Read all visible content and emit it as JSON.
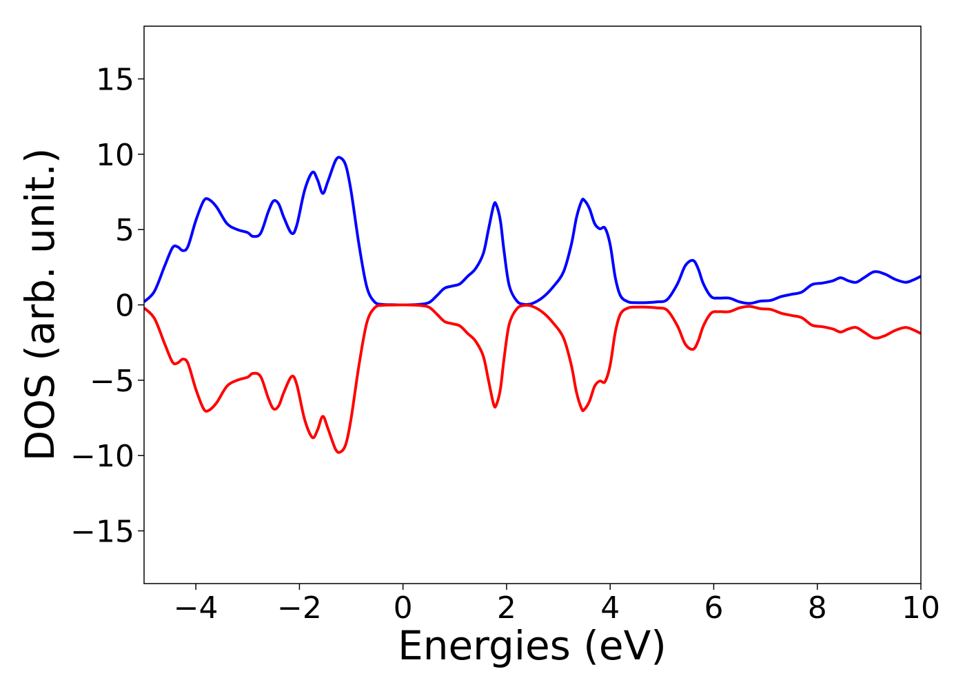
{
  "chart_data": {
    "type": "line",
    "title": "",
    "xlabel": "Energies (eV)",
    "ylabel": "DOS (arb. unit.)",
    "xlim": [
      -5,
      10
    ],
    "ylim": [
      -18.5,
      18.5
    ],
    "xticks": [
      -4,
      -2,
      0,
      2,
      4,
      6,
      8,
      10
    ],
    "xtick_labels": [
      "−4",
      "−2",
      "0",
      "2",
      "4",
      "6",
      "8",
      "10"
    ],
    "yticks": [
      -15,
      -10,
      -5,
      0,
      5,
      10,
      15
    ],
    "ytick_labels": [
      "−15",
      "−10",
      "−5",
      "0",
      "5",
      "10",
      "15"
    ],
    "grid": false,
    "legend": "none",
    "series": [
      {
        "color": "#0000ff",
        "x": [
          -5.0,
          -4.8,
          -4.6,
          -4.45,
          -4.35,
          -4.25,
          -4.15,
          -4.0,
          -3.85,
          -3.75,
          -3.6,
          -3.4,
          -3.2,
          -3.0,
          -2.9,
          -2.75,
          -2.6,
          -2.5,
          -2.4,
          -2.3,
          -2.15,
          -2.05,
          -1.9,
          -1.75,
          -1.65,
          -1.55,
          -1.45,
          -1.3,
          -1.2,
          -1.1,
          -1.0,
          -0.85,
          -0.7,
          -0.55,
          -0.4,
          -0.2,
          0.0,
          0.3,
          0.5,
          0.65,
          0.8,
          0.95,
          1.1,
          1.25,
          1.4,
          1.55,
          1.65,
          1.75,
          1.8,
          1.88,
          1.95,
          2.05,
          2.2,
          2.35,
          2.5,
          2.7,
          2.9,
          3.1,
          3.25,
          3.35,
          3.45,
          3.5,
          3.6,
          3.7,
          3.8,
          3.9,
          4.0,
          4.1,
          4.2,
          4.35,
          4.5,
          4.7,
          4.9,
          5.1,
          5.3,
          5.45,
          5.6,
          5.7,
          5.8,
          5.95,
          6.1,
          6.3,
          6.5,
          6.7,
          6.9,
          7.1,
          7.3,
          7.5,
          7.7,
          7.9,
          8.1,
          8.3,
          8.45,
          8.6,
          8.75,
          8.9,
          9.1,
          9.3,
          9.5,
          9.7,
          9.85,
          10.0
        ],
        "y": [
          0.2,
          0.9,
          2.6,
          3.8,
          3.85,
          3.6,
          3.9,
          5.6,
          6.9,
          7.0,
          6.5,
          5.4,
          5.0,
          4.8,
          4.55,
          4.75,
          6.2,
          6.9,
          6.7,
          5.8,
          4.75,
          5.3,
          7.6,
          8.8,
          8.3,
          7.4,
          8.2,
          9.6,
          9.75,
          9.2,
          7.5,
          4.0,
          1.2,
          0.2,
          0.03,
          0.01,
          0.0,
          0.03,
          0.15,
          0.6,
          1.1,
          1.25,
          1.4,
          1.9,
          2.4,
          3.4,
          5.0,
          6.6,
          6.65,
          5.6,
          3.6,
          1.3,
          0.25,
          0.03,
          0.1,
          0.5,
          1.2,
          2.2,
          4.0,
          5.8,
          6.9,
          6.95,
          6.4,
          5.4,
          5.05,
          5.1,
          4.0,
          1.8,
          0.6,
          0.2,
          0.15,
          0.15,
          0.2,
          0.35,
          1.4,
          2.6,
          2.95,
          2.4,
          1.4,
          0.55,
          0.45,
          0.45,
          0.2,
          0.1,
          0.25,
          0.3,
          0.55,
          0.7,
          0.85,
          1.35,
          1.45,
          1.6,
          1.8,
          1.6,
          1.5,
          1.8,
          2.2,
          2.05,
          1.7,
          1.5,
          1.65,
          1.9
        ]
      },
      {
        "color": "#ff0000",
        "x": [
          -5.0,
          -4.8,
          -4.6,
          -4.45,
          -4.35,
          -4.25,
          -4.15,
          -4.0,
          -3.85,
          -3.75,
          -3.6,
          -3.4,
          -3.2,
          -3.0,
          -2.9,
          -2.75,
          -2.6,
          -2.5,
          -2.4,
          -2.3,
          -2.15,
          -2.05,
          -1.9,
          -1.75,
          -1.65,
          -1.55,
          -1.45,
          -1.3,
          -1.2,
          -1.1,
          -1.0,
          -0.85,
          -0.7,
          -0.55,
          -0.4,
          -0.2,
          0.0,
          0.3,
          0.5,
          0.65,
          0.8,
          0.95,
          1.1,
          1.25,
          1.4,
          1.55,
          1.65,
          1.75,
          1.8,
          1.88,
          1.95,
          2.05,
          2.2,
          2.35,
          2.5,
          2.7,
          2.9,
          3.1,
          3.25,
          3.35,
          3.45,
          3.5,
          3.6,
          3.7,
          3.8,
          3.9,
          4.0,
          4.1,
          4.2,
          4.35,
          4.5,
          4.7,
          4.9,
          5.1,
          5.3,
          5.45,
          5.6,
          5.7,
          5.8,
          5.95,
          6.1,
          6.3,
          6.5,
          6.7,
          6.9,
          7.1,
          7.3,
          7.5,
          7.7,
          7.9,
          8.1,
          8.3,
          8.45,
          8.6,
          8.75,
          8.9,
          9.1,
          9.3,
          9.5,
          9.7,
          9.85,
          10.0
        ],
        "y": [
          -0.2,
          -0.9,
          -2.6,
          -3.8,
          -3.85,
          -3.6,
          -3.9,
          -5.6,
          -6.9,
          -7.0,
          -6.5,
          -5.4,
          -5.0,
          -4.8,
          -4.55,
          -4.75,
          -6.2,
          -6.9,
          -6.7,
          -5.8,
          -4.75,
          -5.3,
          -7.6,
          -8.8,
          -8.3,
          -7.4,
          -8.2,
          -9.6,
          -9.75,
          -9.2,
          -7.5,
          -4.0,
          -1.2,
          -0.2,
          -0.03,
          -0.01,
          0.0,
          -0.03,
          -0.15,
          -0.6,
          -1.1,
          -1.25,
          -1.4,
          -1.9,
          -2.4,
          -3.4,
          -5.0,
          -6.6,
          -6.65,
          -5.6,
          -3.6,
          -1.3,
          -0.25,
          -0.03,
          -0.1,
          -0.5,
          -1.2,
          -2.2,
          -4.0,
          -5.8,
          -6.9,
          -6.95,
          -6.4,
          -5.4,
          -5.05,
          -5.1,
          -4.0,
          -1.8,
          -0.6,
          -0.2,
          -0.15,
          -0.15,
          -0.2,
          -0.35,
          -1.4,
          -2.6,
          -2.95,
          -2.4,
          -1.4,
          -0.55,
          -0.45,
          -0.45,
          -0.2,
          -0.1,
          -0.25,
          -0.3,
          -0.55,
          -0.7,
          -0.85,
          -1.35,
          -1.45,
          -1.6,
          -1.8,
          -1.6,
          -1.5,
          -1.8,
          -2.2,
          -2.05,
          -1.7,
          -1.5,
          -1.65,
          -1.9
        ]
      }
    ]
  }
}
